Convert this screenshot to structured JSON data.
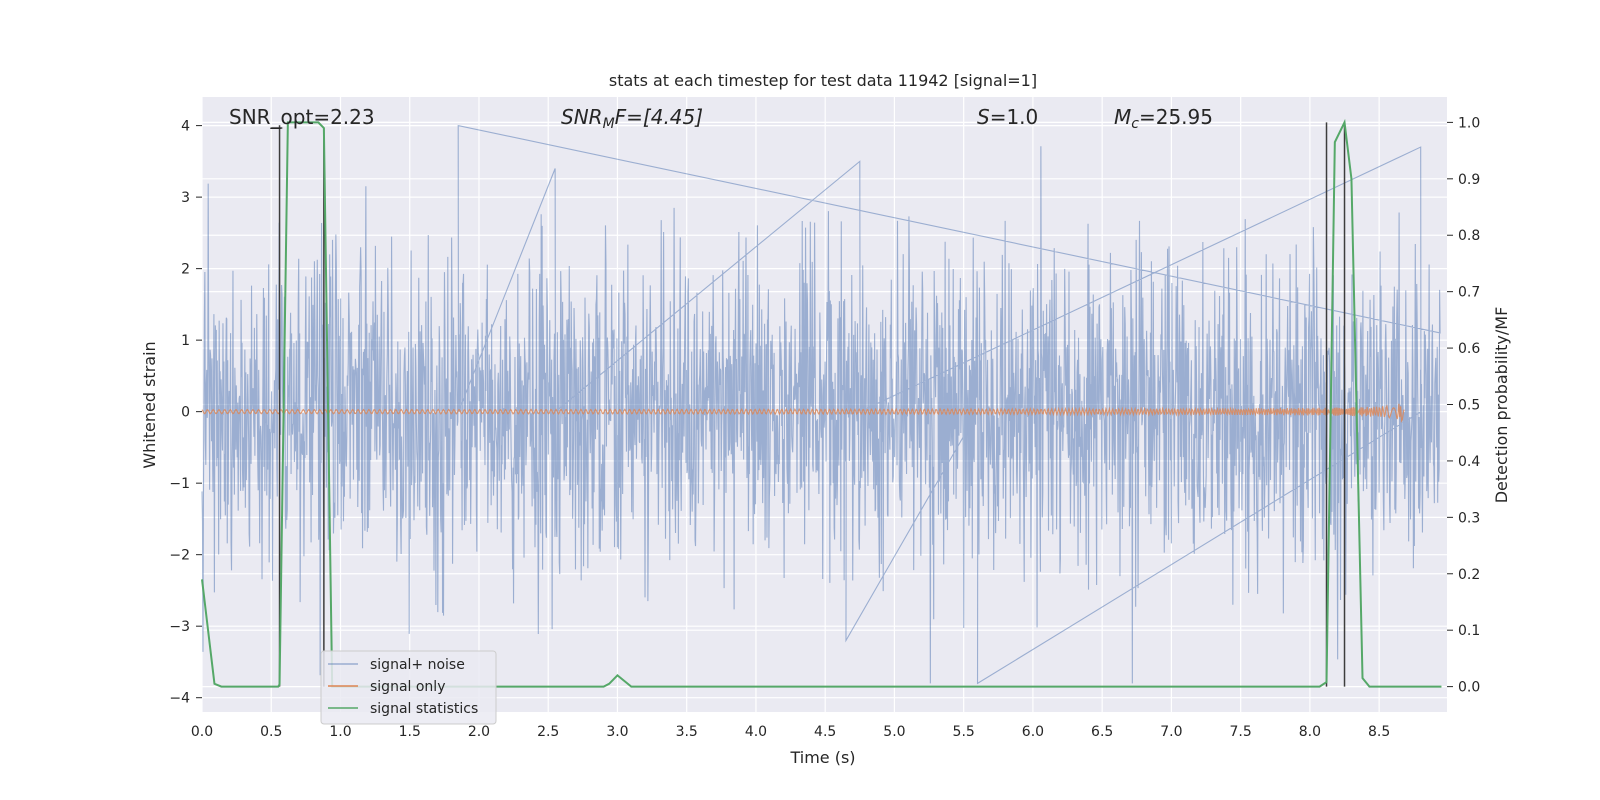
{
  "chart_data": {
    "type": "line",
    "title": "stats at each timestep for test data 11942 [signal=1]",
    "xlabel": "Time (s)",
    "ylabel": "Whitened strain",
    "y2label": "Detection probability/MF",
    "xlim": [
      0.0,
      8.99
    ],
    "ylim": [
      -4.2,
      4.4
    ],
    "y2lim": [
      -0.045,
      1.045
    ],
    "x_ticks": [
      "0.0",
      "0.5",
      "1.0",
      "1.5",
      "2.0",
      "2.5",
      "3.0",
      "3.5",
      "4.0",
      "4.5",
      "5.0",
      "5.5",
      "6.0",
      "6.5",
      "7.0",
      "7.5",
      "8.0",
      "8.5"
    ],
    "y_ticks": [
      "4",
      "3",
      "2",
      "1",
      "0",
      "−1",
      "−2",
      "−3",
      "−4"
    ],
    "y2_ticks": [
      "1.0",
      "0.9",
      "0.8",
      "0.7",
      "0.6",
      "0.5",
      "0.4",
      "0.3",
      "0.2",
      "0.1",
      "0.0"
    ],
    "grid": true,
    "legend_position": "lower-left",
    "annotations": {
      "snr_opt": "SNR_opt=2.23",
      "snr_mf_base": "SNR",
      "snr_mf_sub": "M",
      "snr_mf_rest": "F=[4.45]",
      "s_italic": "S",
      "s_rest": "=1.0",
      "mc_base": "M",
      "mc_sub": "c",
      "mc_rest": "=25.95"
    },
    "series": [
      {
        "name": "signal+ noise",
        "color": "#4c72b0",
        "alpha": 0.5,
        "note_envelope_peaks": [
          {
            "x": 1.85,
            "y": 4.0
          },
          {
            "x": 2.55,
            "y": 3.4
          },
          {
            "x": 4.75,
            "y": 3.5
          },
          {
            "x": 8.8,
            "y": 3.7
          },
          {
            "x": 5.6,
            "y": -3.8
          },
          {
            "x": 4.65,
            "y": -3.2
          }
        ]
      },
      {
        "name": "signal only",
        "color": "#dd8452",
        "chirp_end_x": 8.68,
        "chirp_peak_amplitude": 0.55
      },
      {
        "name": "signal statistics",
        "color": "#55a868",
        "points": [
          [
            0.0,
            0.19
          ],
          [
            0.09,
            0.005
          ],
          [
            0.14,
            0.0
          ],
          [
            0.55,
            0.0
          ],
          [
            0.56,
            0.004
          ],
          [
            0.62,
            1.0
          ],
          [
            0.84,
            1.0
          ],
          [
            0.88,
            0.99
          ],
          [
            0.94,
            0.0
          ],
          [
            2.9,
            0.0
          ],
          [
            2.94,
            0.005
          ],
          [
            3.0,
            0.02
          ],
          [
            3.04,
            0.012
          ],
          [
            3.1,
            0.0
          ],
          [
            8.07,
            0.0
          ],
          [
            8.12,
            0.008
          ],
          [
            8.18,
            0.965
          ],
          [
            8.25,
            1.0
          ],
          [
            8.3,
            0.9
          ],
          [
            8.38,
            0.015
          ],
          [
            8.43,
            0.0
          ],
          [
            8.95,
            0.0
          ]
        ]
      }
    ],
    "vertical_markers": [
      {
        "x": 0.56,
        "y2_from": 0.0,
        "y2_to": 0.995,
        "color": "#3d3d3d"
      },
      {
        "x": 0.88,
        "y2_from": 0.0,
        "y2_to": 0.99,
        "color": "#3d3d3d"
      },
      {
        "x": 8.12,
        "y2_from": 0.0,
        "y2_to": 1.0,
        "color": "#3d3d3d"
      },
      {
        "x": 8.25,
        "y2_from": 0.0,
        "y2_to": 1.0,
        "color": "#3d3d3d"
      }
    ],
    "horizontal_marker": {
      "x_from": 0.5,
      "x_to": 0.58,
      "y2": 0.99,
      "color": "#3d3d3d"
    }
  },
  "colors": {
    "axes_bg": "#eaeaf2",
    "grid": "#ffffff",
    "text": "#262626"
  }
}
